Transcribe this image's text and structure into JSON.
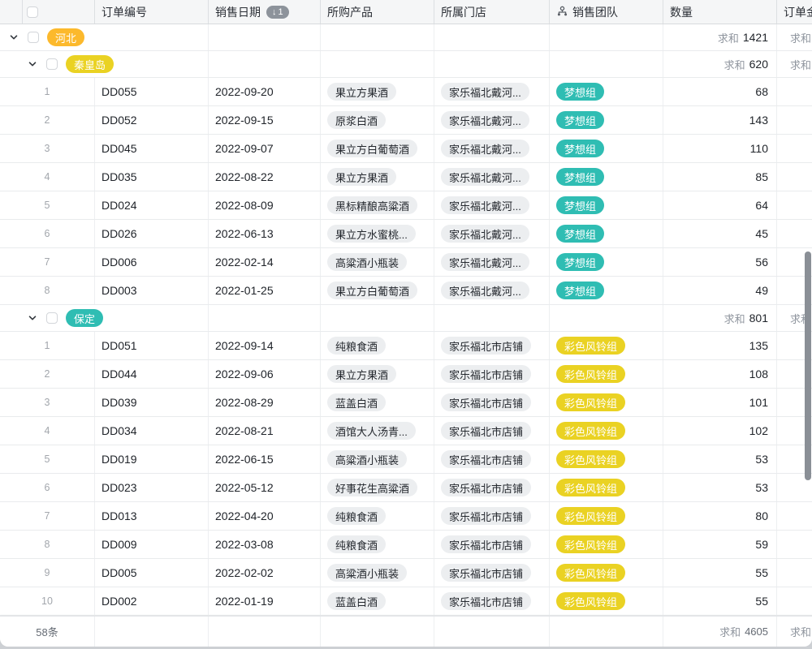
{
  "header": {
    "columns": [
      {
        "label": "订单编号"
      },
      {
        "label": "销售日期",
        "sort_rank": "1"
      },
      {
        "label": "所购产品"
      },
      {
        "label": "所属门店"
      },
      {
        "label": "销售团队",
        "icon": "option-branch-icon"
      },
      {
        "label": "数量"
      },
      {
        "label": "订单金额"
      }
    ]
  },
  "labels": {
    "sum": "求和"
  },
  "colors": {
    "teal": "#2fbdb3",
    "yellow": "#ead223",
    "orange": "#fcb92c",
    "gray_pill": "#eceef0",
    "sort_badge": "#8d939b"
  },
  "rows": [
    {
      "type": "group",
      "level": 1,
      "tag": "河北",
      "tag_color": "orange",
      "qty_sum": "1421"
    },
    {
      "type": "group",
      "level": 2,
      "tag": "秦皇岛",
      "tag_color": "yellow",
      "qty_sum": "620"
    },
    {
      "type": "data",
      "idx": "1",
      "id": "DD055",
      "date": "2022-09-20",
      "product": "果立方果酒",
      "store": "家乐福北戴河...",
      "team": "梦想组",
      "team_color": "teal",
      "qty": "68"
    },
    {
      "type": "data",
      "idx": "2",
      "id": "DD052",
      "date": "2022-09-15",
      "product": "原浆白酒",
      "store": "家乐福北戴河...",
      "team": "梦想组",
      "team_color": "teal",
      "qty": "143"
    },
    {
      "type": "data",
      "idx": "3",
      "id": "DD045",
      "date": "2022-09-07",
      "product": "果立方白葡萄酒",
      "store": "家乐福北戴河...",
      "team": "梦想组",
      "team_color": "teal",
      "qty": "110"
    },
    {
      "type": "data",
      "idx": "4",
      "id": "DD035",
      "date": "2022-08-22",
      "product": "果立方果酒",
      "store": "家乐福北戴河...",
      "team": "梦想组",
      "team_color": "teal",
      "qty": "85"
    },
    {
      "type": "data",
      "idx": "5",
      "id": "DD024",
      "date": "2022-08-09",
      "product": "黑标精酿高粱酒",
      "store": "家乐福北戴河...",
      "team": "梦想组",
      "team_color": "teal",
      "qty": "64"
    },
    {
      "type": "data",
      "idx": "6",
      "id": "DD026",
      "date": "2022-06-13",
      "product": "果立方水蜜桃...",
      "store": "家乐福北戴河...",
      "team": "梦想组",
      "team_color": "teal",
      "qty": "45"
    },
    {
      "type": "data",
      "idx": "7",
      "id": "DD006",
      "date": "2022-02-14",
      "product": "高粱酒小瓶装",
      "store": "家乐福北戴河...",
      "team": "梦想组",
      "team_color": "teal",
      "qty": "56"
    },
    {
      "type": "data",
      "idx": "8",
      "id": "DD003",
      "date": "2022-01-25",
      "product": "果立方白葡萄酒",
      "store": "家乐福北戴河...",
      "team": "梦想组",
      "team_color": "teal",
      "qty": "49"
    },
    {
      "type": "group",
      "level": 2,
      "tag": "保定",
      "tag_color": "teal",
      "qty_sum": "801"
    },
    {
      "type": "data",
      "idx": "1",
      "id": "DD051",
      "date": "2022-09-14",
      "product": "纯粮食酒",
      "store": "家乐福北市店铺",
      "team": "彩色风铃组",
      "team_color": "yellow",
      "qty": "135"
    },
    {
      "type": "data",
      "idx": "2",
      "id": "DD044",
      "date": "2022-09-06",
      "product": "果立方果酒",
      "store": "家乐福北市店铺",
      "team": "彩色风铃组",
      "team_color": "yellow",
      "qty": "108"
    },
    {
      "type": "data",
      "idx": "3",
      "id": "DD039",
      "date": "2022-08-29",
      "product": "蓝盖白酒",
      "store": "家乐福北市店铺",
      "team": "彩色风铃组",
      "team_color": "yellow",
      "qty": "101"
    },
    {
      "type": "data",
      "idx": "4",
      "id": "DD034",
      "date": "2022-08-21",
      "product": "酒馆大人汤青...",
      "store": "家乐福北市店铺",
      "team": "彩色风铃组",
      "team_color": "yellow",
      "qty": "102"
    },
    {
      "type": "data",
      "idx": "5",
      "id": "DD019",
      "date": "2022-06-15",
      "product": "高粱酒小瓶装",
      "store": "家乐福北市店铺",
      "team": "彩色风铃组",
      "team_color": "yellow",
      "qty": "53"
    },
    {
      "type": "data",
      "idx": "6",
      "id": "DD023",
      "date": "2022-05-12",
      "product": "好事花生高粱酒",
      "store": "家乐福北市店铺",
      "team": "彩色风铃组",
      "team_color": "yellow",
      "qty": "53"
    },
    {
      "type": "data",
      "idx": "7",
      "id": "DD013",
      "date": "2022-04-20",
      "product": "纯粮食酒",
      "store": "家乐福北市店铺",
      "team": "彩色风铃组",
      "team_color": "yellow",
      "qty": "80"
    },
    {
      "type": "data",
      "idx": "8",
      "id": "DD009",
      "date": "2022-03-08",
      "product": "纯粮食酒",
      "store": "家乐福北市店铺",
      "team": "彩色风铃组",
      "team_color": "yellow",
      "qty": "59"
    },
    {
      "type": "data",
      "idx": "9",
      "id": "DD005",
      "date": "2022-02-02",
      "product": "高粱酒小瓶装",
      "store": "家乐福北市店铺",
      "team": "彩色风铃组",
      "team_color": "yellow",
      "qty": "55"
    },
    {
      "type": "data",
      "idx": "10",
      "id": "DD002",
      "date": "2022-01-19",
      "product": "蓝盖白酒",
      "store": "家乐福北市店铺",
      "team": "彩色风铃组",
      "team_color": "yellow",
      "qty": "55"
    }
  ],
  "footer": {
    "count": "58条",
    "qty_sum": "4605"
  }
}
